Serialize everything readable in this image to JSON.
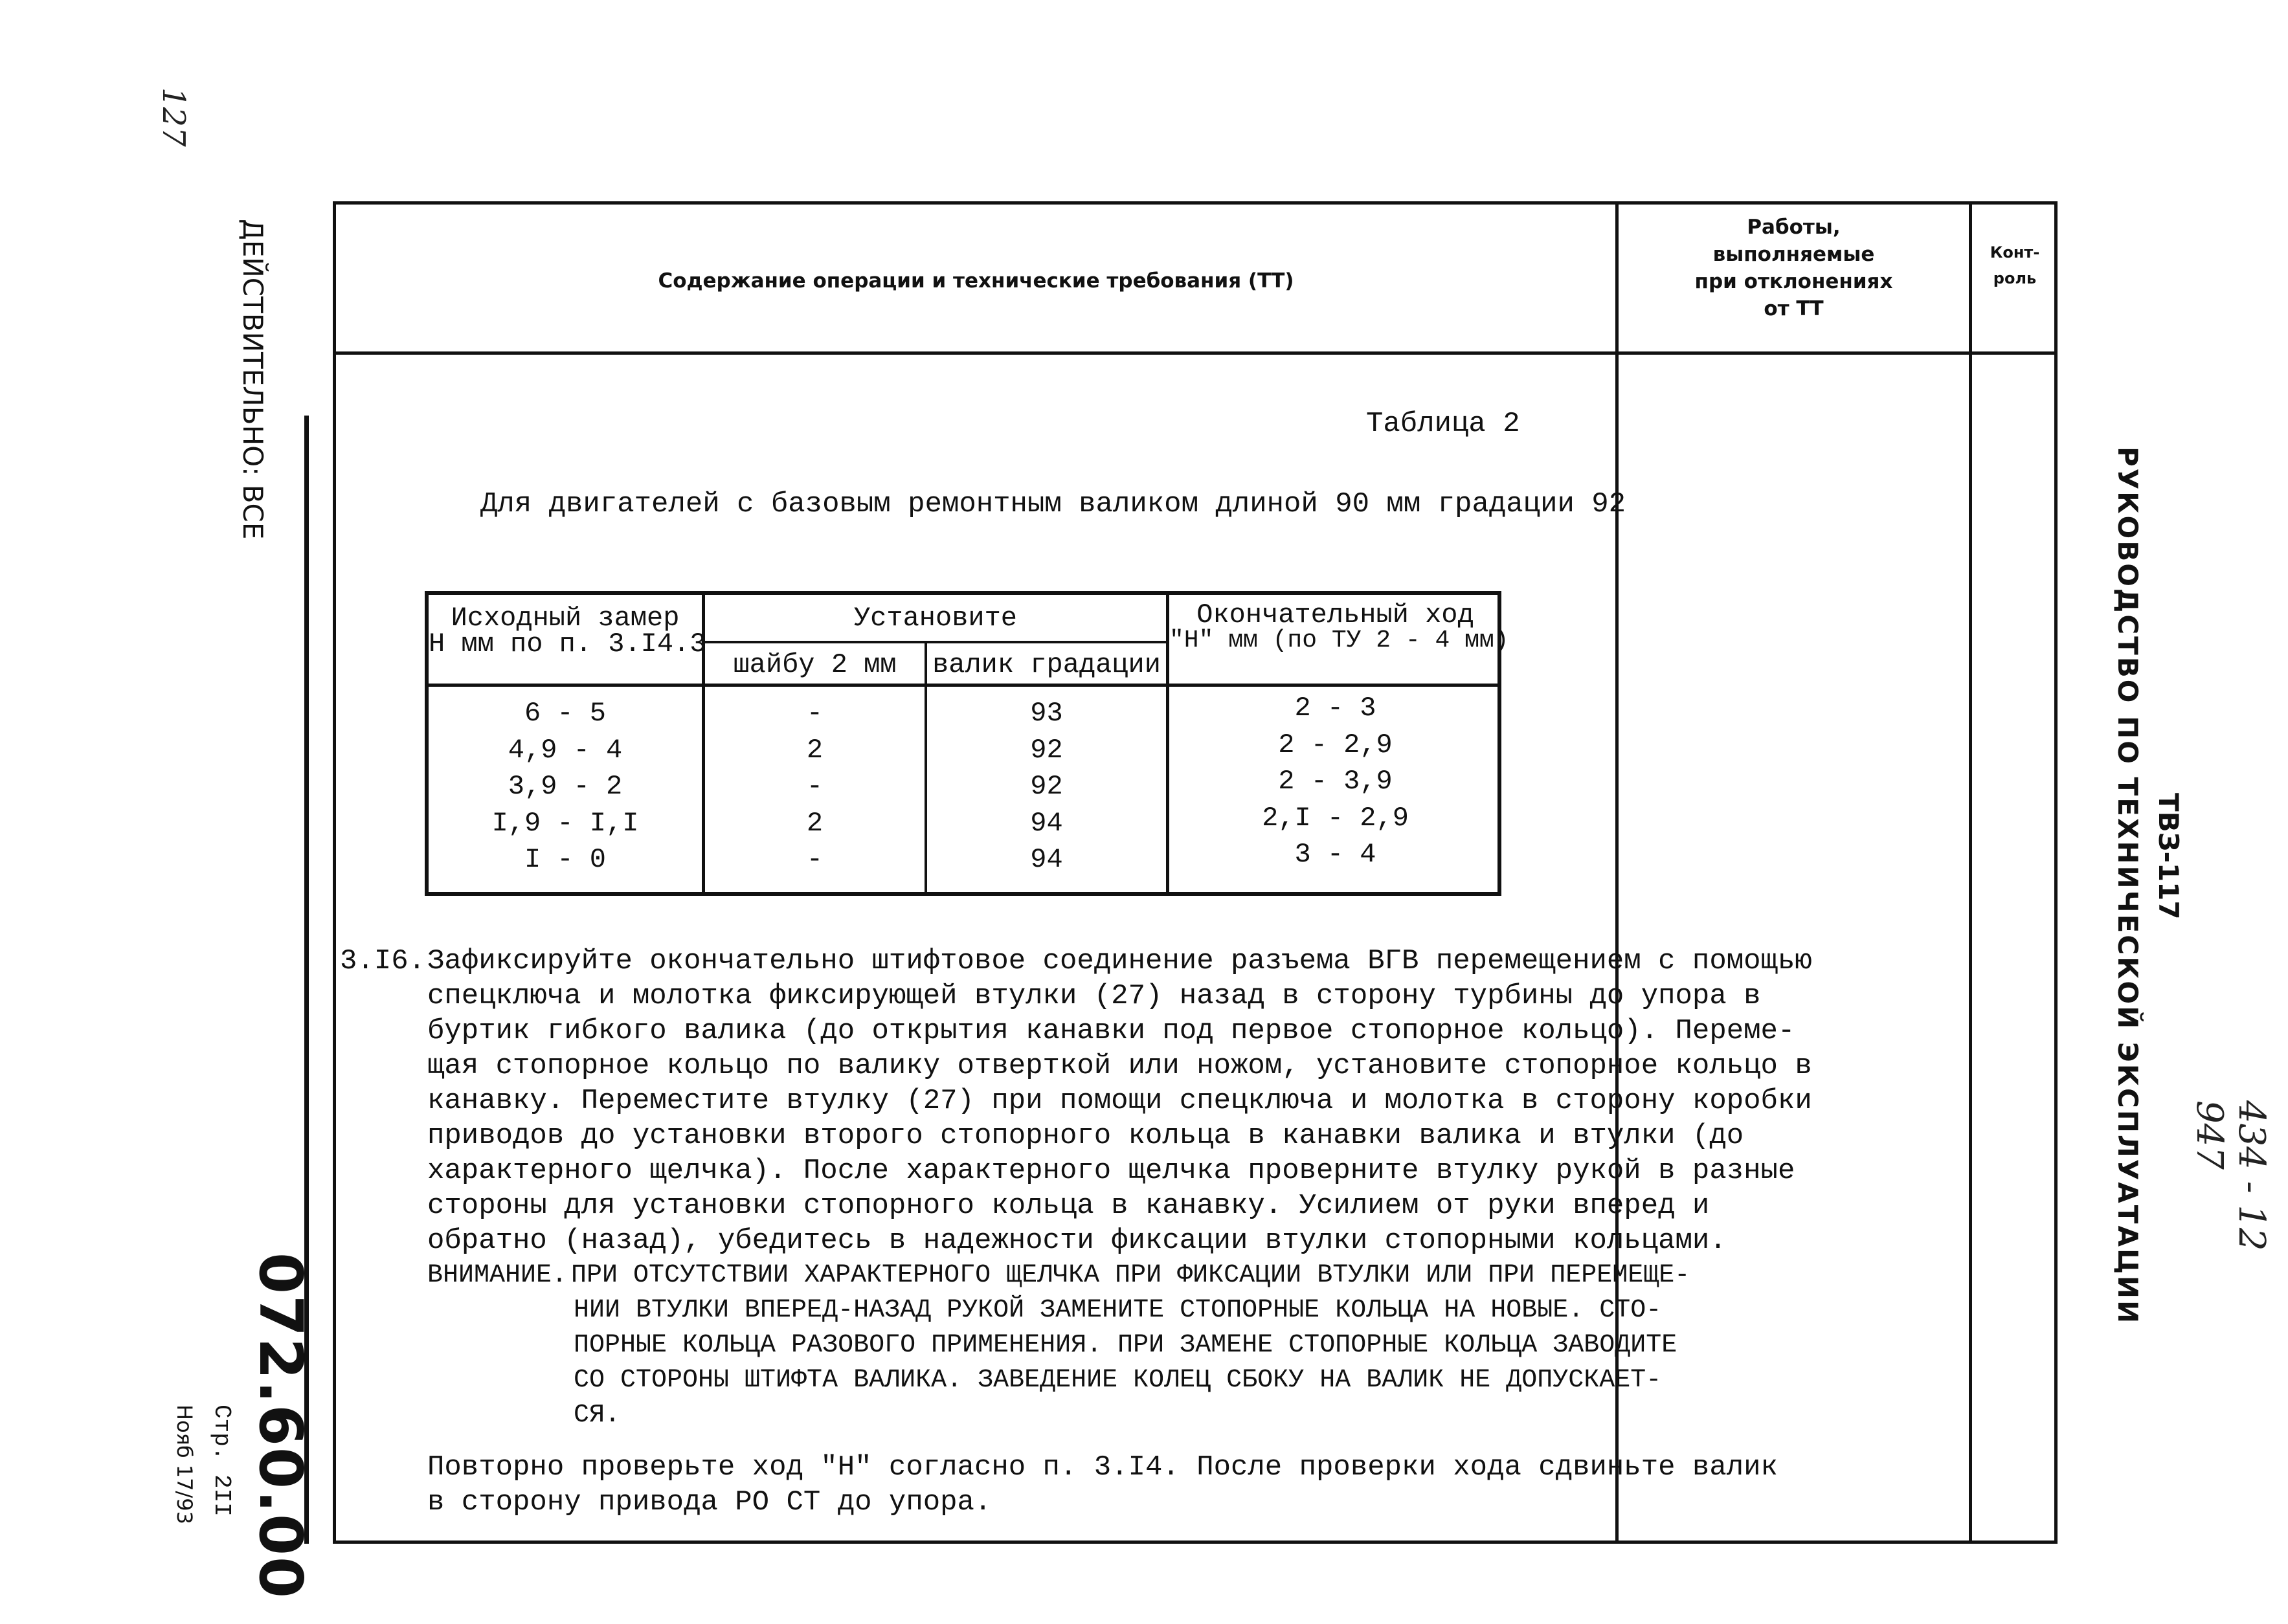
{
  "header": {
    "content_column": "Содержание операции и технические требования (ТТ)",
    "deviation_column": [
      "Работы,",
      "выполняемые",
      "при отклонениях",
      "от ТТ"
    ],
    "control_column": [
      "Конт-",
      "роль"
    ]
  },
  "table_caption": "Таблица 2",
  "table_subtitle": "Для двигателей с базовым ремонтным валиком длиной 90 мм градации 92",
  "table": {
    "col1_header": [
      "Исходный замер",
      "Н мм по п. 3.I4.3"
    ],
    "group_header": "Установите",
    "col2_header": "шайбу 2 мм",
    "col3_header": "валик градации",
    "col4_header": [
      "Окончательный ход",
      "\"Н\" мм (по ТУ 2 - 4 мм)"
    ],
    "rows": [
      [
        "6 - 5",
        "-",
        "93",
        "2 - 3"
      ],
      [
        "4,9 - 4",
        "2",
        "92",
        "2 - 2,9"
      ],
      [
        "3,9 - 2",
        "-",
        "92",
        "2 - 3,9"
      ],
      [
        "I,9 - I,I",
        "2",
        "94",
        "2,I - 2,9"
      ],
      [
        "I - 0",
        "-",
        "94",
        "3 - 4"
      ]
    ]
  },
  "section": {
    "number": "3.I6.",
    "lines": [
      "Зафиксируйте окончательно штифтовое соединение разъема ВГВ перемещением с помощью",
      "спецключа и молотка фиксирующей втулки (27) назад в сторону турбины до упора в",
      "буртик гибкого валика (до открытия канавки под первое стопорное кольцо). Переме-",
      "щая стопорное кольцо по валику отверткой или ножом, установите стопорное кольцо в",
      "канавку. Переместите втулку (27) при помощи спецключа и молотка в сторону коробки",
      "приводов до установки второго стопорного кольца в канавки валика и втулки (до",
      "характерного щелчка). После характерного щелчка проверните втулку рукой в разные",
      "стороны для установки стопорного кольца в канавку. Усилием от руки вперед и",
      "обратно (назад), убедитесь в надежности фиксации втулки стопорными кольцами."
    ],
    "warning_label": "ВНИМАНИЕ.",
    "warning_lines": [
      "ПРИ ОТСУТСТВИИ ХАРАКТЕРНОГО ЩЕЛЧКА ПРИ ФИКСАЦИИ ВТУЛКИ ИЛИ ПРИ ПЕРЕМЕЩЕ-",
      "НИИ ВТУЛКИ ВПЕРЕД-НАЗАД РУКОЙ ЗАМЕНИТЕ СТОПОРНЫЕ КОЛЬЦА НА НОВЫЕ. СТО-",
      "ПОРНЫЕ КОЛЬЦА РАЗОВОГО ПРИМЕНЕНИЯ. ПРИ ЗАМЕНЕ СТОПОРНЫЕ КОЛЬЦА ЗАВОДИТЕ",
      "СО СТОРОНЫ ШТИФТА ВАЛИКА. ЗАВЕДЕНИЕ КОЛЕЦ СБОКУ НА ВАЛИК НЕ ДОПУСКАЕТ-",
      "СЯ."
    ],
    "final_lines": [
      "Повторно проверьте ход \"Н\" согласно п. 3.I4. После проверки хода сдвиньте валик",
      "в сторону привода РО СТ до упора."
    ]
  },
  "margin_left": {
    "validity": "ДЕЙСТВИТЕЛЬНО: ВСЕ",
    "doc_number": "072.60.00",
    "page": "Стр. 2II",
    "date": "Нояб 17/93",
    "handwritten_corner": "127"
  },
  "margin_right": {
    "model": "ТВЗ-117",
    "manual_title": "РУКОВОДСТВО ПО ТЕХНИЧЕСКОЙ ЭКСПЛУАТАЦИИ",
    "handwritten_note": [
      "434 - 12",
      "947"
    ]
  }
}
